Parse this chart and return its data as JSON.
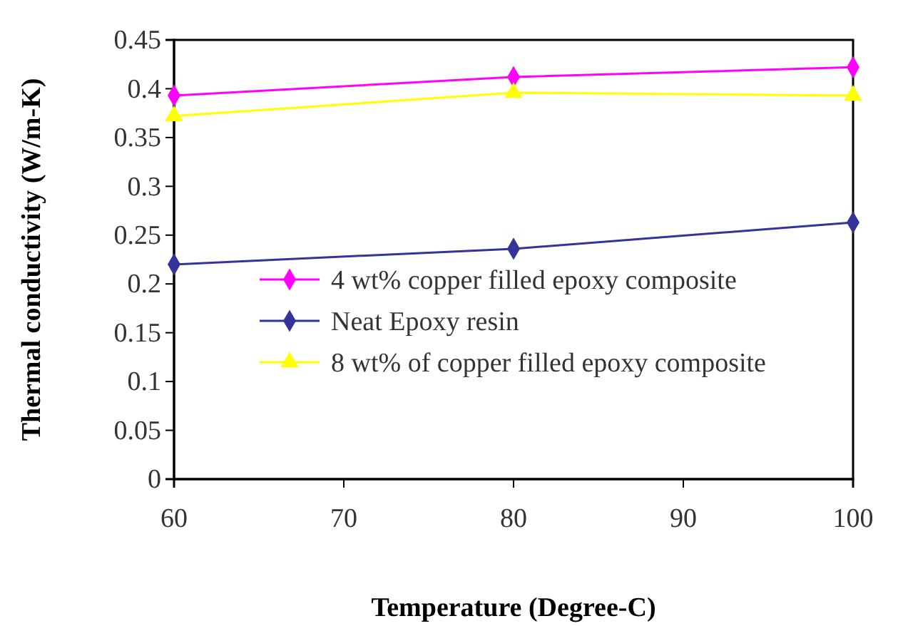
{
  "chart_data": {
    "type": "line",
    "xlabel": "Temperature (Degree-C)",
    "ylabel": "Thermal conductivity (W/m-K)",
    "x": [
      60,
      80,
      100
    ],
    "series": [
      {
        "name": "4 wt% copper filled epoxy composite",
        "color": "#ff00ff",
        "marker": "diamond",
        "values": [
          0.393,
          0.412,
          0.422
        ]
      },
      {
        "name": "Neat Epoxy resin",
        "color": "#333399",
        "marker": "diamond",
        "values": [
          0.22,
          0.236,
          0.263
        ]
      },
      {
        "name": "8 wt% of copper filled epoxy composite",
        "color": "#ffff00",
        "marker": "triangle",
        "values": [
          0.372,
          0.396,
          0.393
        ]
      }
    ],
    "xlim": [
      60,
      100
    ],
    "xticks": [
      60,
      70,
      80,
      90,
      100
    ],
    "ylim": [
      0,
      0.45
    ],
    "yticks": [
      0,
      0.05,
      0.1,
      0.15,
      0.2,
      0.25,
      0.3,
      0.35,
      0.4,
      0.45
    ],
    "grid": false,
    "legend": "bottom"
  }
}
